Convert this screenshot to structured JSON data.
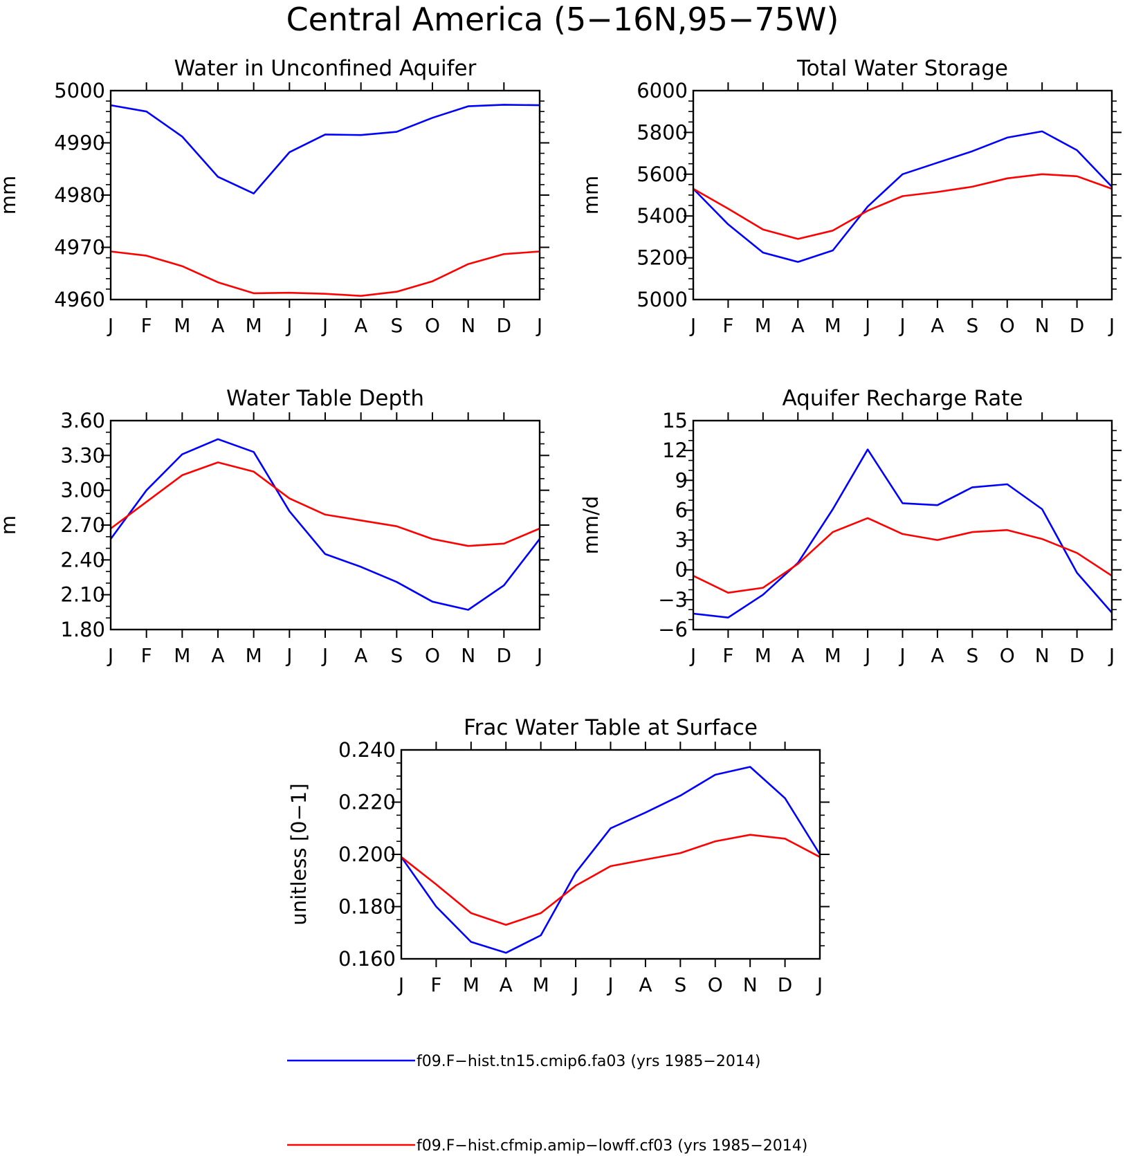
{
  "title": "Central America (5−16N,95−75W)",
  "colors": {
    "series1": "#0000ff",
    "series2": "#ff0000",
    "axis": "#000000"
  },
  "legend": {
    "placement": "bottom",
    "entries": [
      {
        "label": "f09.F−hist.tn15.cmip6.fa03 (yrs 1985−2014)",
        "color": "#0000ff"
      },
      {
        "label": "f09.F−hist.cfmip.amip−lowff.cf03 (yrs 1985−2014)",
        "color": "#ff0000"
      }
    ]
  },
  "chart_data": [
    {
      "type": "line",
      "title": "Water in Unconfined Aquifer",
      "ylabel": "mm",
      "categories": [
        "J",
        "F",
        "M",
        "A",
        "M",
        "J",
        "J",
        "A",
        "S",
        "O",
        "N",
        "D",
        "J"
      ],
      "ylim": [
        4960,
        5000
      ],
      "yticks": [
        "4960",
        "4970",
        "4980",
        "4990",
        "5000"
      ],
      "yminor": 5,
      "series": [
        {
          "values": [
            4997.2,
            4996.0,
            4991.2,
            4983.5,
            4980.3,
            4988.2,
            4991.6,
            4991.5,
            4992.1,
            4994.8,
            4997.0,
            4997.3,
            4997.2
          ]
        },
        {
          "values": [
            4969.2,
            4968.4,
            4966.4,
            4963.3,
            4961.2,
            4961.3,
            4961.1,
            4960.7,
            4961.5,
            4963.5,
            4966.8,
            4968.7,
            4969.2
          ]
        }
      ]
    },
    {
      "type": "line",
      "title": "Total Water Storage",
      "ylabel": "mm",
      "categories": [
        "J",
        "F",
        "M",
        "A",
        "M",
        "J",
        "J",
        "A",
        "S",
        "O",
        "N",
        "D",
        "J"
      ],
      "ylim": [
        5000,
        6000
      ],
      "yticks": [
        "5000",
        "5200",
        "5400",
        "5600",
        "5800",
        "6000"
      ],
      "yminor": 4,
      "series": [
        {
          "values": [
            5530,
            5360,
            5225,
            5180,
            5235,
            5445,
            5600,
            5655,
            5710,
            5775,
            5805,
            5715,
            5540
          ]
        },
        {
          "values": [
            5530,
            5435,
            5335,
            5290,
            5330,
            5425,
            5495,
            5515,
            5540,
            5580,
            5600,
            5590,
            5530
          ]
        }
      ]
    },
    {
      "type": "line",
      "title": "Water Table Depth",
      "ylabel": "m",
      "categories": [
        "J",
        "F",
        "M",
        "A",
        "M",
        "J",
        "J",
        "A",
        "S",
        "O",
        "N",
        "D",
        "J"
      ],
      "ylim": [
        1.8,
        3.6
      ],
      "yticks": [
        "1.80",
        "2.10",
        "2.40",
        "2.70",
        "3.00",
        "3.30",
        "3.60"
      ],
      "yminor": 3,
      "series": [
        {
          "values": [
            2.58,
            3.0,
            3.31,
            3.44,
            3.33,
            2.82,
            2.45,
            2.34,
            2.21,
            2.04,
            1.97,
            2.18,
            2.58
          ]
        },
        {
          "values": [
            2.67,
            2.9,
            3.13,
            3.24,
            3.16,
            2.93,
            2.79,
            2.74,
            2.69,
            2.58,
            2.52,
            2.54,
            2.67
          ]
        }
      ]
    },
    {
      "type": "line",
      "title": "Aquifer Recharge Rate",
      "ylabel": "mm/d",
      "categories": [
        "J",
        "F",
        "M",
        "A",
        "M",
        "J",
        "J",
        "A",
        "S",
        "O",
        "N",
        "D",
        "J"
      ],
      "ylim": [
        -6,
        15
      ],
      "yticks": [
        "−6",
        "−3",
        "0",
        "3",
        "6",
        "9",
        "12",
        "15"
      ],
      "yminor": 3,
      "series": [
        {
          "values": [
            -4.4,
            -4.8,
            -2.5,
            0.7,
            6.1,
            12.1,
            6.7,
            6.5,
            8.3,
            8.6,
            6.1,
            -0.3,
            -4.3
          ]
        },
        {
          "values": [
            -0.6,
            -2.3,
            -1.8,
            0.6,
            3.8,
            5.2,
            3.6,
            3.0,
            3.8,
            4.0,
            3.1,
            1.7,
            -0.6
          ]
        }
      ]
    },
    {
      "type": "line",
      "title": "Frac Water Table at Surface",
      "ylabel": "unitless [0−1]",
      "categories": [
        "J",
        "F",
        "M",
        "A",
        "M",
        "J",
        "J",
        "A",
        "S",
        "O",
        "N",
        "D",
        "J"
      ],
      "ylim": [
        0.16,
        0.24
      ],
      "yticks": [
        "0.160",
        "0.180",
        "0.200",
        "0.220",
        "0.240"
      ],
      "yminor": 4,
      "series": [
        {
          "values": [
            0.199,
            0.18,
            0.1665,
            0.1623,
            0.169,
            0.193,
            0.21,
            0.216,
            0.2225,
            0.2305,
            0.2335,
            0.2215,
            0.2
          ]
        },
        {
          "values": [
            0.199,
            0.1885,
            0.1775,
            0.173,
            0.1775,
            0.188,
            0.1955,
            0.198,
            0.2005,
            0.205,
            0.2075,
            0.206,
            0.199
          ]
        }
      ]
    }
  ]
}
